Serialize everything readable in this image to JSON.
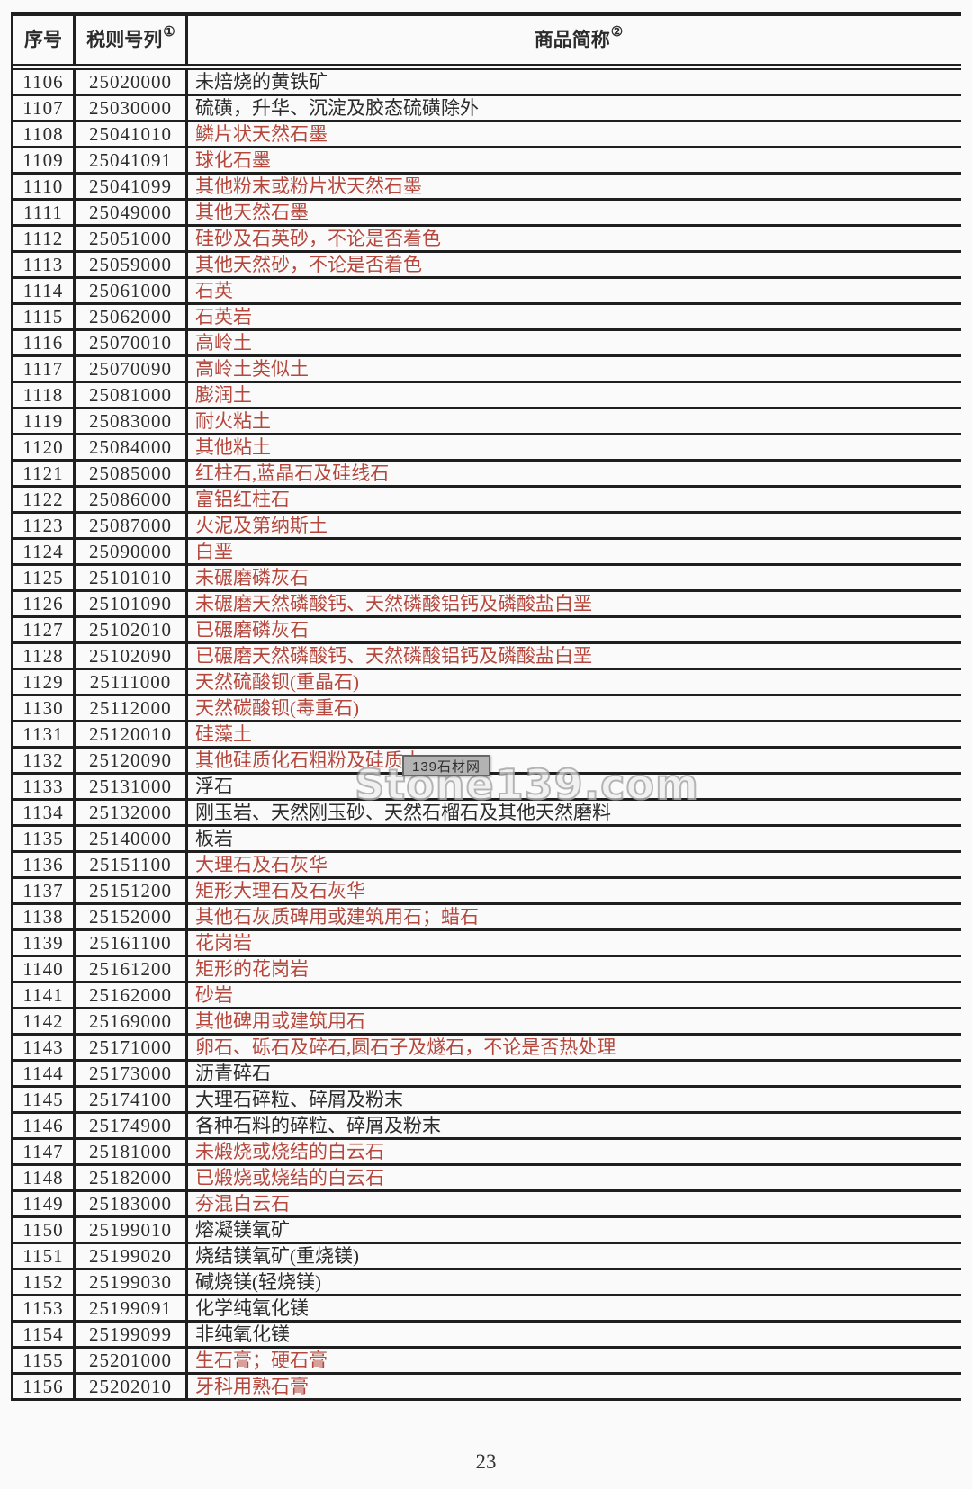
{
  "header": {
    "col_serial": "序号",
    "col_tariff": "税则号列",
    "col_tariff_sup": "①",
    "col_name": "商品简称",
    "col_name_sup": "②"
  },
  "watermark": {
    "badge": "139石材网",
    "text": "Stone139.com"
  },
  "footer": {
    "page_number": "23"
  },
  "colors": {
    "red_text": "#b5473c",
    "black_text": "#2b2b2b",
    "border": "#1f1f1f"
  },
  "table": {
    "rows": [
      {
        "no": "1106",
        "code": "25020000",
        "desc": "未焙烧的黄铁矿",
        "red": false
      },
      {
        "no": "1107",
        "code": "25030000",
        "desc": "硫磺，升华、沉淀及胶态硫磺除外",
        "red": false
      },
      {
        "no": "1108",
        "code": "25041010",
        "desc": "鳞片状天然石墨",
        "red": true
      },
      {
        "no": "1109",
        "code": "25041091",
        "desc": "球化石墨",
        "red": true
      },
      {
        "no": "1110",
        "code": "25041099",
        "desc": "其他粉末或粉片状天然石墨",
        "red": true
      },
      {
        "no": "1111",
        "code": "25049000",
        "desc": "其他天然石墨",
        "red": true
      },
      {
        "no": "1112",
        "code": "25051000",
        "desc": "硅砂及石英砂，不论是否着色",
        "red": true
      },
      {
        "no": "1113",
        "code": "25059000",
        "desc": "其他天然砂，不论是否着色",
        "red": true
      },
      {
        "no": "1114",
        "code": "25061000",
        "desc": "石英",
        "red": true
      },
      {
        "no": "1115",
        "code": "25062000",
        "desc": "石英岩",
        "red": true
      },
      {
        "no": "1116",
        "code": "25070010",
        "desc": "高岭土",
        "red": true
      },
      {
        "no": "1117",
        "code": "25070090",
        "desc": "高岭土类似土",
        "red": true
      },
      {
        "no": "1118",
        "code": "25081000",
        "desc": "膨润土",
        "red": true
      },
      {
        "no": "1119",
        "code": "25083000",
        "desc": "耐火粘土",
        "red": true
      },
      {
        "no": "1120",
        "code": "25084000",
        "desc": "其他粘土",
        "red": true
      },
      {
        "no": "1121",
        "code": "25085000",
        "desc": "红柱石,蓝晶石及硅线石",
        "red": true
      },
      {
        "no": "1122",
        "code": "25086000",
        "desc": "富铝红柱石",
        "red": true
      },
      {
        "no": "1123",
        "code": "25087000",
        "desc": "火泥及第纳斯土",
        "red": true
      },
      {
        "no": "1124",
        "code": "25090000",
        "desc": "白垩",
        "red": true
      },
      {
        "no": "1125",
        "code": "25101010",
        "desc": "未碾磨磷灰石",
        "red": true
      },
      {
        "no": "1126",
        "code": "25101090",
        "desc": "未碾磨天然磷酸钙、天然磷酸铝钙及磷酸盐白垩",
        "red": true
      },
      {
        "no": "1127",
        "code": "25102010",
        "desc": "已碾磨磷灰石",
        "red": true
      },
      {
        "no": "1128",
        "code": "25102090",
        "desc": "已碾磨天然磷酸钙、天然磷酸铝钙及磷酸盐白垩",
        "red": true
      },
      {
        "no": "1129",
        "code": "25111000",
        "desc": "天然硫酸钡(重晶石)",
        "red": true
      },
      {
        "no": "1130",
        "code": "25112000",
        "desc": "天然碳酸钡(毒重石)",
        "red": true
      },
      {
        "no": "1131",
        "code": "25120010",
        "desc": "硅藻土",
        "red": true
      },
      {
        "no": "1132",
        "code": "25120090",
        "desc": "其他硅质化石粗粉及硅质土",
        "red": true
      },
      {
        "no": "1133",
        "code": "25131000",
        "desc": "浮石",
        "red": false
      },
      {
        "no": "1134",
        "code": "25132000",
        "desc": "刚玉岩、天然刚玉砂、天然石榴石及其他天然磨料",
        "red": false
      },
      {
        "no": "1135",
        "code": "25140000",
        "desc": "板岩",
        "red": false
      },
      {
        "no": "1136",
        "code": "25151100",
        "desc": "大理石及石灰华",
        "red": true
      },
      {
        "no": "1137",
        "code": "25151200",
        "desc": "矩形大理石及石灰华",
        "red": true
      },
      {
        "no": "1138",
        "code": "25152000",
        "desc": "其他石灰质碑用或建筑用石；蜡石",
        "red": true
      },
      {
        "no": "1139",
        "code": "25161100",
        "desc": "花岗岩",
        "red": true
      },
      {
        "no": "1140",
        "code": "25161200",
        "desc": "矩形的花岗岩",
        "red": true
      },
      {
        "no": "1141",
        "code": "25162000",
        "desc": "砂岩",
        "red": true
      },
      {
        "no": "1142",
        "code": "25169000",
        "desc": "其他碑用或建筑用石",
        "red": true
      },
      {
        "no": "1143",
        "code": "25171000",
        "desc": "卵石、砾石及碎石,圆石子及燧石，不论是否热处理",
        "red": true
      },
      {
        "no": "1144",
        "code": "25173000",
        "desc": "沥青碎石",
        "red": false
      },
      {
        "no": "1145",
        "code": "25174100",
        "desc": "大理石碎粒、碎屑及粉末",
        "red": false
      },
      {
        "no": "1146",
        "code": "25174900",
        "desc": "各种石料的碎粒、碎屑及粉末",
        "red": false
      },
      {
        "no": "1147",
        "code": "25181000",
        "desc": "未煅烧或烧结的白云石",
        "red": true
      },
      {
        "no": "1148",
        "code": "25182000",
        "desc": "已煅烧或烧结的白云石",
        "red": true
      },
      {
        "no": "1149",
        "code": "25183000",
        "desc": "夯混白云石",
        "red": true
      },
      {
        "no": "1150",
        "code": "25199010",
        "desc": "熔凝镁氧矿",
        "red": false
      },
      {
        "no": "1151",
        "code": "25199020",
        "desc": "烧结镁氧矿(重烧镁)",
        "red": false
      },
      {
        "no": "1152",
        "code": "25199030",
        "desc": "碱烧镁(轻烧镁)",
        "red": false
      },
      {
        "no": "1153",
        "code": "25199091",
        "desc": "化学纯氧化镁",
        "red": false
      },
      {
        "no": "1154",
        "code": "25199099",
        "desc": "非纯氧化镁",
        "red": false
      },
      {
        "no": "1155",
        "code": "25201000",
        "desc": "生石膏；硬石膏",
        "red": true
      },
      {
        "no": "1156",
        "code": "25202010",
        "desc": "牙科用熟石膏",
        "red": true
      }
    ]
  }
}
